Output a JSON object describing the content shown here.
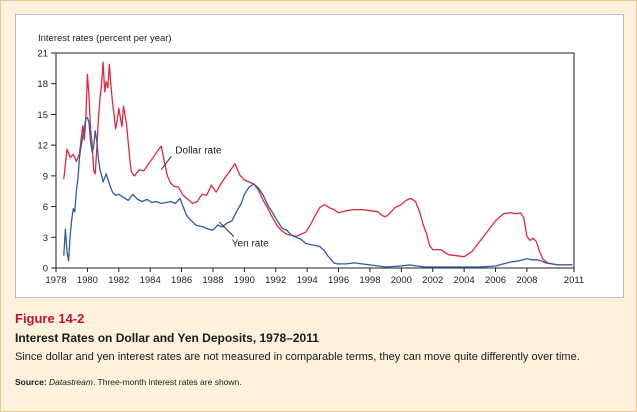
{
  "figure": {
    "number": "Figure 14-2",
    "title": "Interest Rates on Dollar and Yen Deposits, 1978–2011",
    "caption": "Since dollar and yen interest rates are not measured in comparable terms, they can move quite differently over time.",
    "source_label": "Source:",
    "source_name": "Datastream",
    "source_text": ". Three-month interest rates are shown."
  },
  "colors": {
    "dollar": "#e2283c",
    "yen": "#2e5ba8",
    "frame_bg": "#fff2dc",
    "frame_border": "#f0c590",
    "caption_red": "#c8102e"
  },
  "chart_data": {
    "type": "line",
    "ylabel": "Interest rates (percent per year)",
    "xlabel": "",
    "xlim": [
      1978,
      2011
    ],
    "ylim": [
      0,
      21
    ],
    "xticks": [
      1978,
      1980,
      1982,
      1984,
      1986,
      1988,
      1990,
      1992,
      1994,
      1996,
      1998,
      2000,
      2002,
      2004,
      2006,
      2008,
      2011
    ],
    "yticks": [
      0,
      3,
      6,
      9,
      12,
      15,
      18,
      21
    ],
    "grid": false,
    "annotations": [
      {
        "text": "Dollar rate",
        "series": "dollar",
        "at": [
          1985.6,
          11.2
        ],
        "pointer_to": [
          1984.7,
          9.6
        ]
      },
      {
        "text": "Yen rate",
        "series": "yen",
        "at": [
          1989.2,
          2.1
        ],
        "pointer_to": [
          1988.4,
          4.5
        ]
      }
    ],
    "series": [
      {
        "key": "dollar",
        "x": [
          1978.5,
          1978.7,
          1978.9,
          1979.1,
          1979.3,
          1979.5,
          1979.7,
          1979.8,
          1979.9,
          1980.0,
          1980.1,
          1980.2,
          1980.3,
          1980.4,
          1980.5,
          1980.6,
          1980.7,
          1980.8,
          1980.9,
          1981.0,
          1981.1,
          1981.2,
          1981.3,
          1981.4,
          1981.5,
          1981.6,
          1981.7,
          1981.8,
          1981.9,
          1982.0,
          1982.2,
          1982.3,
          1982.5,
          1982.7,
          1982.8,
          1983.0,
          1983.3,
          1983.6,
          1983.9,
          1984.2,
          1984.5,
          1984.7,
          1984.9,
          1985.1,
          1985.3,
          1985.5,
          1985.8,
          1986.1,
          1986.4,
          1986.7,
          1987.0,
          1987.3,
          1987.6,
          1987.9,
          1988.2,
          1988.5,
          1988.8,
          1989.1,
          1989.4,
          1989.7,
          1990.0,
          1990.3,
          1990.6,
          1990.9,
          1991.2,
          1991.5,
          1991.8,
          1992.1,
          1992.4,
          1992.7,
          1993.0,
          1993.3,
          1993.6,
          1993.9,
          1994.2,
          1994.5,
          1994.8,
          1995.1,
          1995.4,
          1995.7,
          1996.0,
          1996.5,
          1997.0,
          1997.5,
          1998.0,
          1998.5,
          1998.8,
          1999.0,
          1999.3,
          1999.6,
          2000.0,
          2000.3,
          2000.6,
          2000.9,
          2001.2,
          2001.4,
          2001.6,
          2001.8,
          2002.0,
          2002.5,
          2003.0,
          2003.5,
          2004.0,
          2004.5,
          2005.0,
          2005.5,
          2006.0,
          2006.5,
          2007.0,
          2007.3,
          2007.6,
          2007.8,
          2008.0,
          2008.2,
          2008.4,
          2008.6,
          2008.8,
          2008.9,
          2009.0,
          2009.3,
          2009.6,
          2010.0,
          2010.5,
          2010.9
        ],
        "y": [
          8.7,
          11.6,
          10.8,
          11.1,
          10.4,
          11.2,
          13.9,
          12.5,
          14.6,
          18.9,
          16.8,
          13.6,
          12.2,
          9.5,
          9.2,
          11.6,
          14.6,
          16.6,
          17.9,
          20.1,
          17.2,
          18.2,
          17.6,
          19.9,
          17.8,
          16.2,
          14.9,
          13.6,
          14.4,
          15.6,
          13.8,
          15.8,
          14.0,
          10.6,
          9.4,
          9.0,
          9.6,
          9.5,
          10.2,
          10.8,
          11.5,
          11.9,
          10.4,
          9.0,
          8.3,
          8.0,
          7.9,
          7.1,
          6.7,
          6.3,
          6.5,
          7.2,
          7.1,
          8.1,
          7.4,
          8.2,
          8.9,
          9.5,
          10.2,
          9.1,
          8.6,
          8.4,
          8.2,
          7.6,
          6.6,
          5.8,
          4.9,
          4.1,
          3.6,
          3.3,
          3.2,
          3.1,
          3.3,
          3.5,
          4.2,
          5.1,
          5.9,
          6.2,
          5.9,
          5.7,
          5.4,
          5.6,
          5.7,
          5.7,
          5.6,
          5.5,
          5.1,
          5.0,
          5.4,
          5.9,
          6.2,
          6.6,
          6.8,
          6.5,
          5.3,
          4.2,
          3.4,
          2.2,
          1.8,
          1.8,
          1.3,
          1.2,
          1.1,
          1.6,
          2.6,
          3.6,
          4.6,
          5.3,
          5.4,
          5.3,
          5.4,
          4.9,
          3.1,
          2.7,
          2.9,
          2.6,
          1.6,
          1.3,
          0.9,
          0.5,
          0.4,
          0.3,
          0.3,
          0.3
        ]
      },
      {
        "key": "yen",
        "x": [
          1978.5,
          1978.6,
          1978.7,
          1978.8,
          1978.9,
          1979.0,
          1979.1,
          1979.2,
          1979.3,
          1979.4,
          1979.5,
          1979.6,
          1979.7,
          1979.8,
          1979.9,
          1980.0,
          1980.1,
          1980.2,
          1980.3,
          1980.4,
          1980.5,
          1980.6,
          1980.7,
          1980.8,
          1980.9,
          1981.0,
          1981.2,
          1981.4,
          1981.6,
          1981.8,
          1982.0,
          1982.3,
          1982.6,
          1982.9,
          1983.2,
          1983.5,
          1983.8,
          1984.1,
          1984.4,
          1984.7,
          1985.0,
          1985.3,
          1985.6,
          1985.9,
          1986.1,
          1986.3,
          1986.5,
          1986.7,
          1986.9,
          1987.1,
          1987.4,
          1987.7,
          1988.0,
          1988.3,
          1988.6,
          1988.9,
          1989.2,
          1989.5,
          1989.8,
          1990.0,
          1990.3,
          1990.6,
          1990.9,
          1991.2,
          1991.5,
          1991.8,
          1992.1,
          1992.4,
          1992.7,
          1993.0,
          1993.3,
          1993.6,
          1993.9,
          1994.2,
          1994.5,
          1994.8,
          1995.1,
          1995.3,
          1995.5,
          1995.7,
          1995.9,
          1996.5,
          1997.0,
          1998.0,
          1999.0,
          2000.0,
          2000.5,
          2001.0,
          2001.5,
          2002.0,
          2003.0,
          2004.0,
          2005.0,
          2006.0,
          2006.5,
          2007.0,
          2007.5,
          2008.0,
          2008.3,
          2008.6,
          2008.9,
          2009.2,
          2009.6,
          2010.0,
          2010.5,
          2010.9
        ],
        "y": [
          1.2,
          3.8,
          1.6,
          0.7,
          3.1,
          4.7,
          5.8,
          5.5,
          7.6,
          8.8,
          10.8,
          11.9,
          12.8,
          13.6,
          14.6,
          14.7,
          14.2,
          12.4,
          11.3,
          11.9,
          13.4,
          12.4,
          10.7,
          9.6,
          9.1,
          8.4,
          9.2,
          8.2,
          7.4,
          7.1,
          7.2,
          6.9,
          6.6,
          7.2,
          6.7,
          6.5,
          6.7,
          6.4,
          6.5,
          6.3,
          6.4,
          6.5,
          6.3,
          6.8,
          6.0,
          5.2,
          4.8,
          4.5,
          4.2,
          4.1,
          4.0,
          3.8,
          3.7,
          4.2,
          4.0,
          4.4,
          4.6,
          5.5,
          6.3,
          7.2,
          7.9,
          8.2,
          7.8,
          7.1,
          6.1,
          5.4,
          4.6,
          3.9,
          3.7,
          3.2,
          3.0,
          2.8,
          2.4,
          2.3,
          2.2,
          2.1,
          1.7,
          1.2,
          0.9,
          0.5,
          0.4,
          0.4,
          0.5,
          0.3,
          0.1,
          0.2,
          0.3,
          0.2,
          0.1,
          0.1,
          0.1,
          0.1,
          0.1,
          0.2,
          0.4,
          0.6,
          0.7,
          0.9,
          0.8,
          0.8,
          0.7,
          0.5,
          0.4,
          0.3,
          0.3,
          0.3
        ]
      }
    ]
  }
}
